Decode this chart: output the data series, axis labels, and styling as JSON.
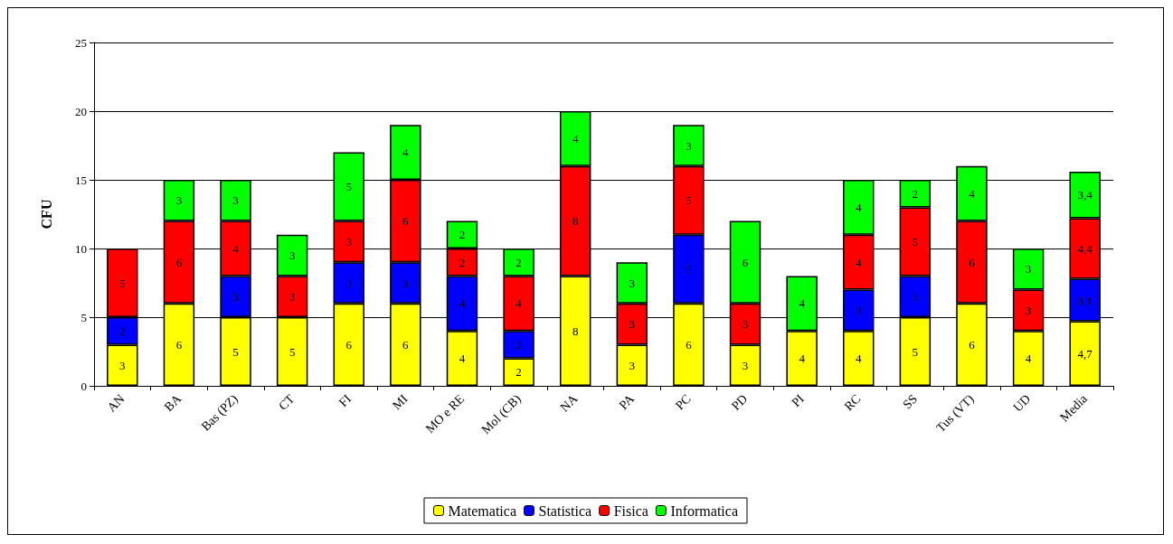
{
  "chart_data": {
    "type": "bar",
    "stacked": true,
    "ylabel": "CFU",
    "categories": [
      "AN",
      "BA",
      "Bas (PZ)",
      "CT",
      "FI",
      "MI",
      "MO e RE",
      "Mol (CB)",
      "NA",
      "PA",
      "PC",
      "PD",
      "PI",
      "RC",
      "SS",
      "Tus (VT)",
      "UD",
      "Media"
    ],
    "series": [
      {
        "name": "Matematica",
        "color": "#ffff00",
        "values": [
          3,
          6,
          5,
          5,
          6,
          6,
          4,
          2,
          8,
          3,
          6,
          3,
          4,
          4,
          5,
          6,
          4,
          4.7
        ],
        "value_labels": [
          "3",
          "6",
          "5",
          "5",
          "6",
          "6",
          "4",
          "2",
          "8",
          "3",
          "6",
          "3",
          "4",
          "4",
          "5",
          "6",
          "4",
          "4,7"
        ]
      },
      {
        "name": "Statistica",
        "color": "#0000ff",
        "values": [
          2,
          null,
          3,
          null,
          3,
          3,
          4,
          2,
          null,
          null,
          5,
          null,
          null,
          3,
          3,
          null,
          null,
          3.1
        ],
        "value_labels": [
          "2",
          null,
          "3",
          null,
          "3",
          "3",
          "4",
          "2",
          null,
          null,
          "5",
          null,
          null,
          "3",
          "3",
          null,
          null,
          "3,1"
        ]
      },
      {
        "name": "Fisica",
        "color": "#ff0000",
        "values": [
          5,
          6,
          4,
          3,
          3,
          6,
          2,
          4,
          8,
          3,
          5,
          3,
          null,
          4,
          5,
          6,
          3,
          4.4
        ],
        "value_labels": [
          "5",
          "6",
          "4",
          "3",
          "3",
          "6",
          "2",
          "4",
          "8",
          "3",
          "5",
          "3",
          null,
          "4",
          "5",
          "6",
          "3",
          "4,4"
        ]
      },
      {
        "name": "Informatica",
        "color": "#00ff00",
        "values": [
          null,
          3,
          3,
          3,
          5,
          4,
          2,
          2,
          4,
          3,
          3,
          6,
          4,
          4,
          2,
          4,
          3,
          3.4
        ],
        "value_labels": [
          null,
          "3",
          "3",
          "3",
          "5",
          "4",
          "2",
          "2",
          "4",
          "3",
          "3",
          "6",
          "4",
          "4",
          "2",
          "4",
          "3",
          "3,4"
        ]
      }
    ],
    "ylim": [
      0,
      25
    ],
    "yticks": [
      0,
      5,
      10,
      15,
      20,
      25
    ],
    "grid": "y",
    "legend": "bottom"
  }
}
